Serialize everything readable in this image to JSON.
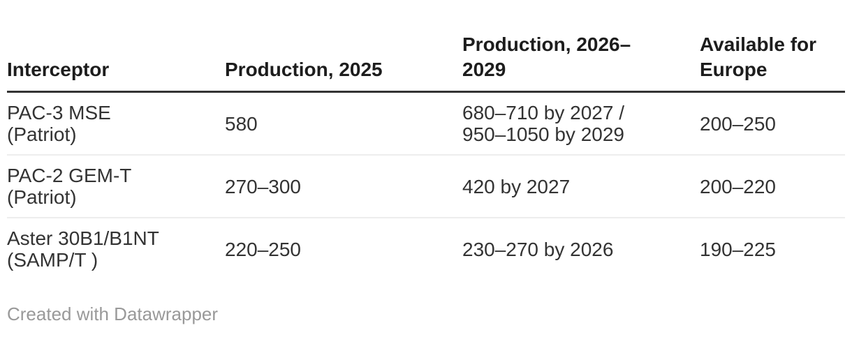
{
  "chart_data": {
    "type": "table",
    "columns": [
      "Interceptor",
      "Production, 2025",
      "Production, 2026–2029",
      "Available for Europe"
    ],
    "rows": [
      [
        "PAC-3 MSE (Patriot)",
        "580",
        "680–710 by 2027 / 950–1050 by 2029",
        "200–250"
      ],
      [
        "PAC-2 GEM-T (Patriot)",
        "270–300",
        "420 by 2027",
        "200–220"
      ],
      [
        "Aster 30B1/B1NT (SAMP/T )",
        "220–250",
        "230–270 by 2026",
        "190–225"
      ]
    ],
    "layout": {
      "grid": "horizontal row dividers only",
      "header_rule": "thick dark line under header",
      "alignment": "left"
    }
  },
  "display": {
    "headers": [
      "Interceptor",
      "Production, 2025",
      "Production, 2026–\n2029",
      "Available for\nEurope"
    ],
    "rows": [
      [
        "PAC-3 MSE\n(Patriot)",
        "580",
        "680–710 by 2027 /\n950–1050 by 2029",
        "200–250"
      ],
      [
        "PAC-2 GEM-T\n(Patriot)",
        "270–300",
        "420 by 2027",
        "200–220"
      ],
      [
        "Aster 30B1/B1NT\n(SAMP/T )",
        "220–250",
        "230–270 by 2026",
        "190–225"
      ]
    ]
  },
  "footer": {
    "attribution": "Created with Datawrapper"
  },
  "colors": {
    "text": "#333333",
    "header-text": "#1d1d1d",
    "header-rule": "#333333",
    "row-divider": "#ededed",
    "attribution-text": "#999999",
    "background": "#ffffff"
  }
}
